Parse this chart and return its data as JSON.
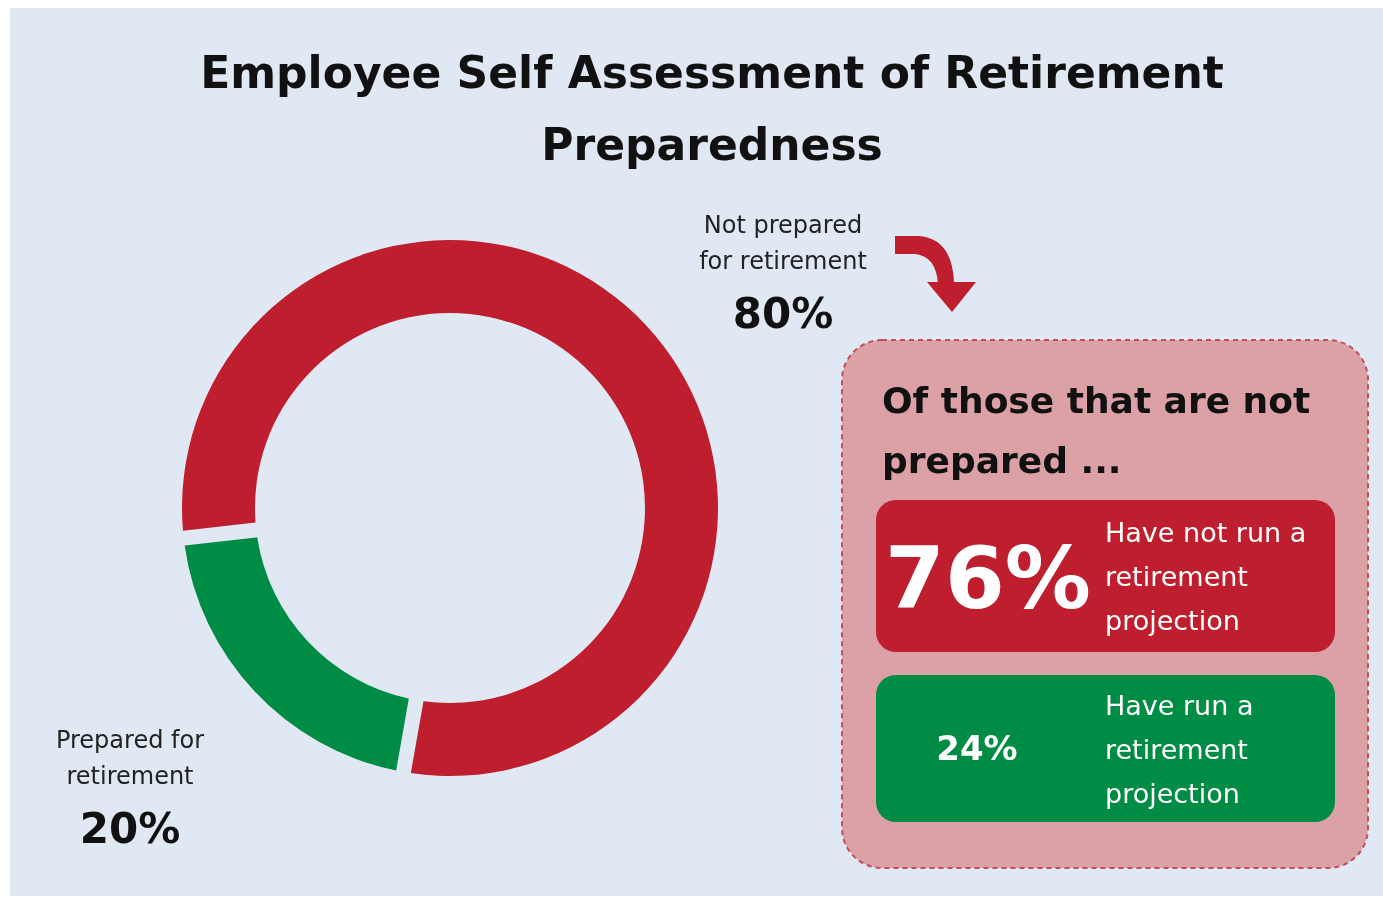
{
  "chart_data": {
    "type": "donut",
    "title": "Employee Self Assessment of Retirement Preparedness",
    "categories": [
      "Prepared for retirement",
      "Not prepared for retirement"
    ],
    "values": [
      20,
      80
    ],
    "value_labels": [
      "20%",
      "80%"
    ],
    "colors": [
      "#008c45",
      "#be1e2d"
    ],
    "annotations": [
      "Of those that are not prepared ...",
      "76%",
      "Have not run a retirement projection",
      "24%",
      "Have run a retirement projection"
    ]
  }
}
